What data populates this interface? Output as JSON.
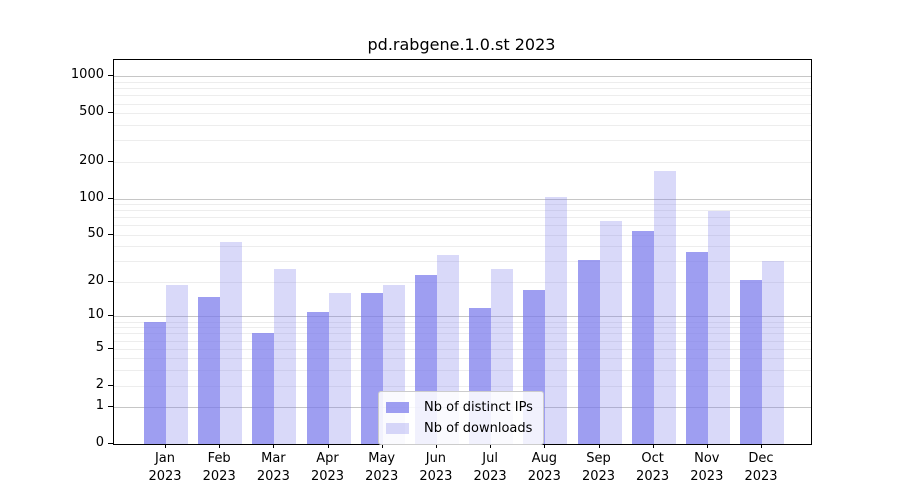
{
  "chart_data": {
    "type": "bar",
    "title": "pd.rabgene.1.0.st 2023",
    "categories": [
      "Jan 2023",
      "Feb 2023",
      "Mar 2023",
      "Apr 2023",
      "May 2023",
      "Jun 2023",
      "Jul 2023",
      "Aug 2023",
      "Sep 2023",
      "Oct 2023",
      "Nov 2023",
      "Dec 2023"
    ],
    "series": [
      {
        "name": "Nb of distinct IPs",
        "color": "rgba(120,120,235,0.72)",
        "values": [
          9,
          15,
          7,
          11,
          16,
          23,
          12,
          17,
          31,
          54,
          36,
          21
        ]
      },
      {
        "name": "Nb of downloads",
        "color": "rgba(120,120,235,0.28)",
        "values": [
          19,
          44,
          26,
          16,
          19,
          34,
          26,
          103,
          65,
          168,
          79,
          30
        ]
      }
    ],
    "yscale": "log1p",
    "ylim": [
      0,
      1360
    ],
    "yticks": [
      0,
      1,
      2,
      5,
      10,
      20,
      50,
      100,
      200,
      500,
      1000
    ],
    "major_gridlines": [
      1,
      10,
      100,
      1000
    ],
    "minor_gridlines": [
      2,
      3,
      4,
      5,
      6,
      7,
      8,
      9,
      20,
      30,
      40,
      50,
      60,
      70,
      80,
      90,
      200,
      300,
      400,
      500,
      600,
      700,
      800,
      900
    ],
    "grid": "horizontal",
    "legend_position": "lower-center",
    "colors": {
      "major_grid": "#c6c6c6",
      "minor_grid": "#ededed",
      "axis": "#000000"
    }
  }
}
